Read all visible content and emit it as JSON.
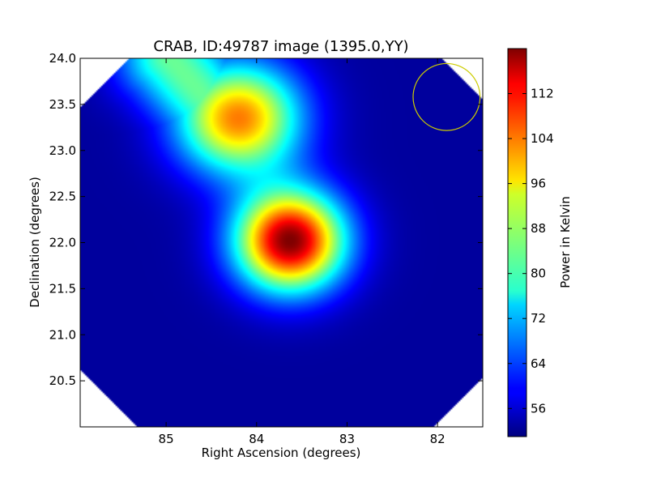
{
  "chart_data": {
    "type": "heatmap",
    "title": "CRAB, ID:49787 image (1395.0,YY)",
    "xlabel": "Right Ascension (degrees)",
    "ylabel": "Declination (degrees)",
    "xlim": [
      85.95,
      81.5
    ],
    "ylim": [
      20.0,
      24.0
    ],
    "x_ticks": [
      85,
      84,
      83,
      82
    ],
    "x_tick_labels": [
      "85",
      "84",
      "83",
      "82"
    ],
    "y_ticks": [
      20.5,
      21.0,
      21.5,
      22.0,
      22.5,
      23.0,
      23.5,
      24.0
    ],
    "y_tick_labels": [
      "20.5",
      "21.0",
      "21.5",
      "22.0",
      "22.5",
      "23.0",
      "23.5",
      "24.0"
    ],
    "colormap": "jet",
    "colorbar": {
      "label": "Power in Kelvin",
      "range": [
        51,
        120
      ],
      "ticks": [
        56,
        64,
        72,
        80,
        88,
        96,
        104,
        112
      ],
      "tick_labels": [
        "56",
        "64",
        "72",
        "80",
        "88",
        "96",
        "104",
        "112"
      ]
    },
    "background_level": 53,
    "sources": [
      {
        "ra": 83.63,
        "dec": 22.02,
        "peak": 120,
        "sigma_ra": 0.42,
        "sigma_dec": 0.38
      },
      {
        "ra": 84.2,
        "dec": 23.35,
        "peak": 103,
        "sigma_ra": 0.48,
        "sigma_dec": 0.42
      }
    ],
    "extended_emission": {
      "from": {
        "ra": 84.95,
        "dec": 24.0
      },
      "to": {
        "ra": 84.15,
        "dec": 23.1
      },
      "level": 84
    },
    "beam_circle": {
      "ra": 81.9,
      "dec": 23.58,
      "radius_deg": 0.37,
      "color": "#cccc00"
    },
    "grid": false,
    "mask_shape": "octagon"
  }
}
